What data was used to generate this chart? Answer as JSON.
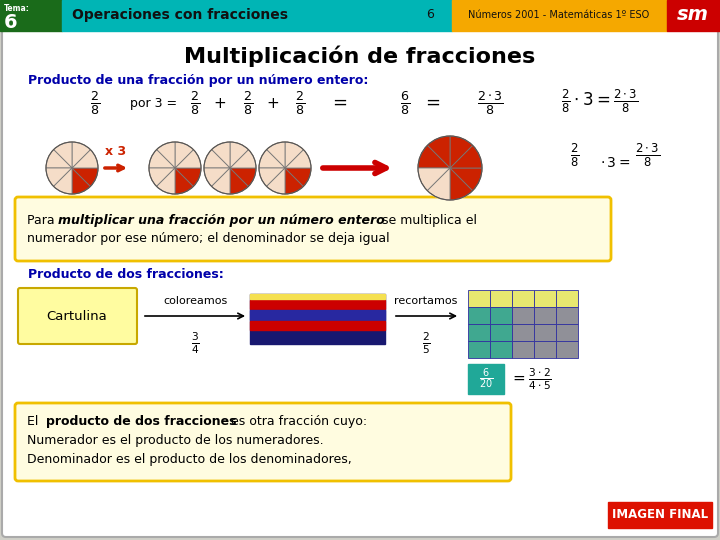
{
  "bg_outer": "#d0d0c8",
  "bg_inner": "#ffffff",
  "header_green_bg": "#1a6b1a",
  "header_cyan_bg": "#00b5b5",
  "header_yellow_bg": "#f5a800",
  "header_red_bg": "#cc0000",
  "tema_label": "Tema:",
  "tema_num": "6",
  "header_title": "Operaciones con fracciones",
  "header_page": "6",
  "header_subtitle": "Números 2001 - Matemáticas 1º ESO",
  "header_sm": "sm",
  "main_title": "Multiplicación de fracciones",
  "section1_color": "#0000aa",
  "section1_title": "Producto de una fracción por un número entero:",
  "section2_title": "Producto de dos fracciones:",
  "yellow_box_border": "#f0c000",
  "yellow_box_fill": "#fffce0",
  "circle_fill_color": "#cc2200",
  "circle_bg_color": "#f5ddc8",
  "arrow_color": "#cc0000",
  "x3_color": "#cc2200",
  "grid_yellow": "#e8e870",
  "grid_teal": "#40a890",
  "grid_gray": "#909098",
  "grid_border": "#3030a0",
  "teal_box_bg": "#20a898",
  "cartulina_fill": "#fffca0",
  "cartulina_border": "#c8a800",
  "stripe_dark": "#181870",
  "stripe_red": "#cc0000",
  "stripe_blue": "#2828a0",
  "imagen_final_bg": "#dd1100",
  "imagen_final_text": "IMAGEN FINAL"
}
